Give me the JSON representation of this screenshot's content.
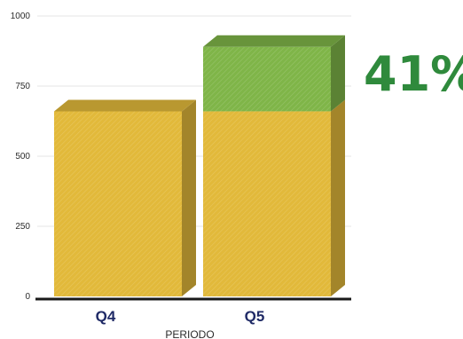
{
  "chart_data": {
    "type": "bar",
    "stacked": true,
    "three_d": true,
    "categories": [
      "Q4",
      "Q5"
    ],
    "series": [
      {
        "values": [
          660,
          660
        ],
        "color": "#e2b93a"
      },
      {
        "values": [
          0,
          230
        ],
        "color": "#7fb548"
      }
    ],
    "ylim": [
      0,
      1000
    ],
    "yticks": [
      0,
      250,
      500,
      750,
      1000
    ],
    "xlabel": "PERIODO",
    "annotation": "41%",
    "grid": true
  }
}
